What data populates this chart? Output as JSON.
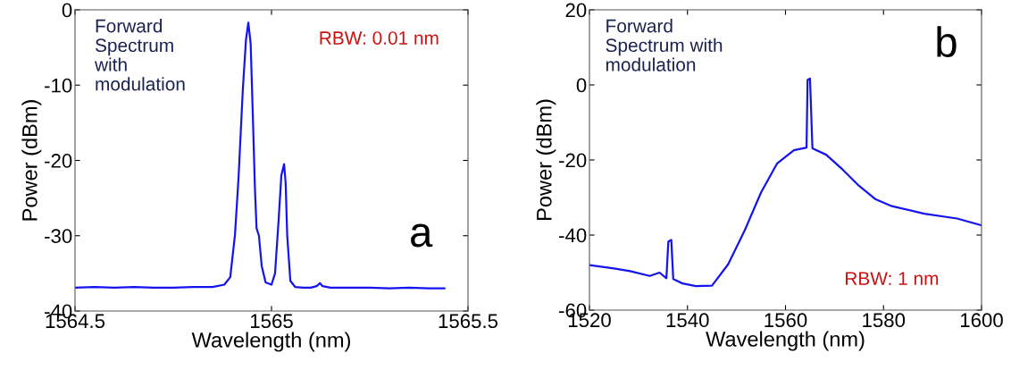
{
  "chart_data": [
    {
      "type": "line",
      "xlabel": "Wavelength (nm)",
      "ylabel": "Power (dBm)",
      "xlim": [
        1564.5,
        1565.5
      ],
      "ylim": [
        -40,
        0
      ],
      "xticks": [
        1564.5,
        1565,
        1565.5
      ],
      "yticks": [
        -40,
        -30,
        -20,
        -10,
        0
      ],
      "grid": false,
      "legend": false,
      "annotations": [
        "Forward\nSpectrum\nwith\nmodulation",
        "RBW: 0.01 nm",
        "a"
      ],
      "series": [
        {
          "color": "#1414f0",
          "x": [
            1564.5,
            1564.55,
            1564.6,
            1564.65,
            1564.7,
            1564.75,
            1564.8,
            1564.85,
            1564.88,
            1564.895,
            1564.907,
            1564.916,
            1564.927,
            1564.935,
            1564.941,
            1564.947,
            1564.953,
            1564.958,
            1564.962,
            1564.968,
            1564.975,
            1564.985,
            1565.0,
            1565.009,
            1565.018,
            1565.025,
            1565.032,
            1565.036,
            1565.04,
            1565.048,
            1565.06,
            1565.08,
            1565.1,
            1565.115,
            1565.123,
            1565.13,
            1565.15,
            1565.2,
            1565.25,
            1565.3,
            1565.35,
            1565.4,
            1565.44
          ],
          "values": [
            -36.9,
            -36.8,
            -36.9,
            -36.8,
            -36.9,
            -36.9,
            -36.8,
            -36.8,
            -36.5,
            -35.5,
            -29.9,
            -22.4,
            -10.6,
            -4,
            -1.7,
            -4.5,
            -15,
            -24,
            -29,
            -30,
            -34,
            -36.2,
            -36.5,
            -35,
            -28,
            -22,
            -20.5,
            -23,
            -30,
            -36,
            -36.8,
            -36.9,
            -36.9,
            -36.7,
            -36.3,
            -36.7,
            -36.9,
            -36.9,
            -36.9,
            -37,
            -36.9,
            -37,
            -37
          ]
        }
      ]
    },
    {
      "type": "line",
      "xlabel": "Wavelength (nm)",
      "ylabel": "Power (dBm)",
      "xlim": [
        1520,
        1600
      ],
      "ylim": [
        -60,
        20
      ],
      "xticks": [
        1520,
        1540,
        1560,
        1580,
        1600
      ],
      "yticks": [
        -60,
        -40,
        -20,
        0,
        20
      ],
      "grid": false,
      "legend": false,
      "annotations": [
        "Forward\nSpectrum with\nmodulation",
        "b",
        "RBW: 1 nm"
      ],
      "series": [
        {
          "color": "#1414f0",
          "x": [
            1520,
            1525,
            1528.3,
            1532.3,
            1534.3,
            1535.7,
            1536.1,
            1536.7,
            1537.1,
            1539,
            1541.7,
            1545,
            1548.3,
            1551.7,
            1555,
            1558.3,
            1561.7,
            1564.3,
            1564.5,
            1565,
            1565.5,
            1568.3,
            1571.7,
            1575,
            1578.3,
            1581.7,
            1588.3,
            1595,
            1600
          ],
          "values": [
            -48.0,
            -48.9,
            -49.6,
            -50.9,
            -50,
            -51.5,
            -41.7,
            -41.3,
            -51.7,
            -52.9,
            -53.6,
            -53.5,
            -47.8,
            -38.7,
            -28.7,
            -20.9,
            -17.4,
            -16.7,
            1.3,
            1.7,
            -16.9,
            -18.6,
            -22.6,
            -26.9,
            -30.4,
            -32.3,
            -34.3,
            -35.6,
            -37.4
          ]
        }
      ]
    }
  ]
}
